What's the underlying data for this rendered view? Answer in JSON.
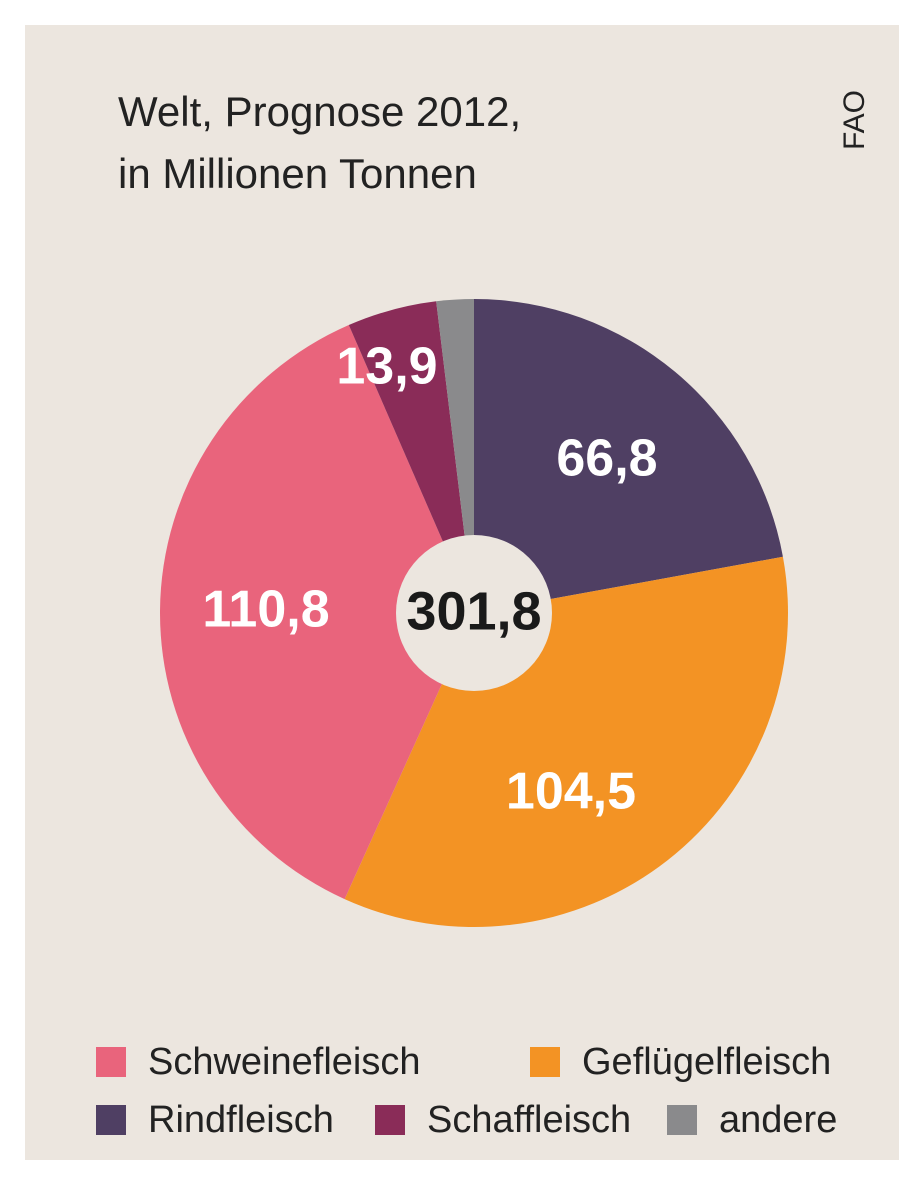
{
  "chart_data": {
    "type": "pie",
    "title_lines": [
      "Welt, Prognose 2012,",
      "in Millionen Tonnen"
    ],
    "source": "FAO",
    "center_label": "301,8",
    "categories": [
      "Rindfleisch",
      "Geflügelfleisch",
      "Schweinefleisch",
      "Schaffleisch",
      "andere"
    ],
    "values": [
      66.8,
      104.5,
      110.8,
      13.9,
      5.8
    ],
    "value_labels": [
      "66,8",
      "104,5",
      "110,8",
      "13,9",
      null
    ],
    "colors": [
      "#4f3f63",
      "#f39324",
      "#e9647c",
      "#8a2c58",
      "#8a8a8c"
    ]
  }
}
